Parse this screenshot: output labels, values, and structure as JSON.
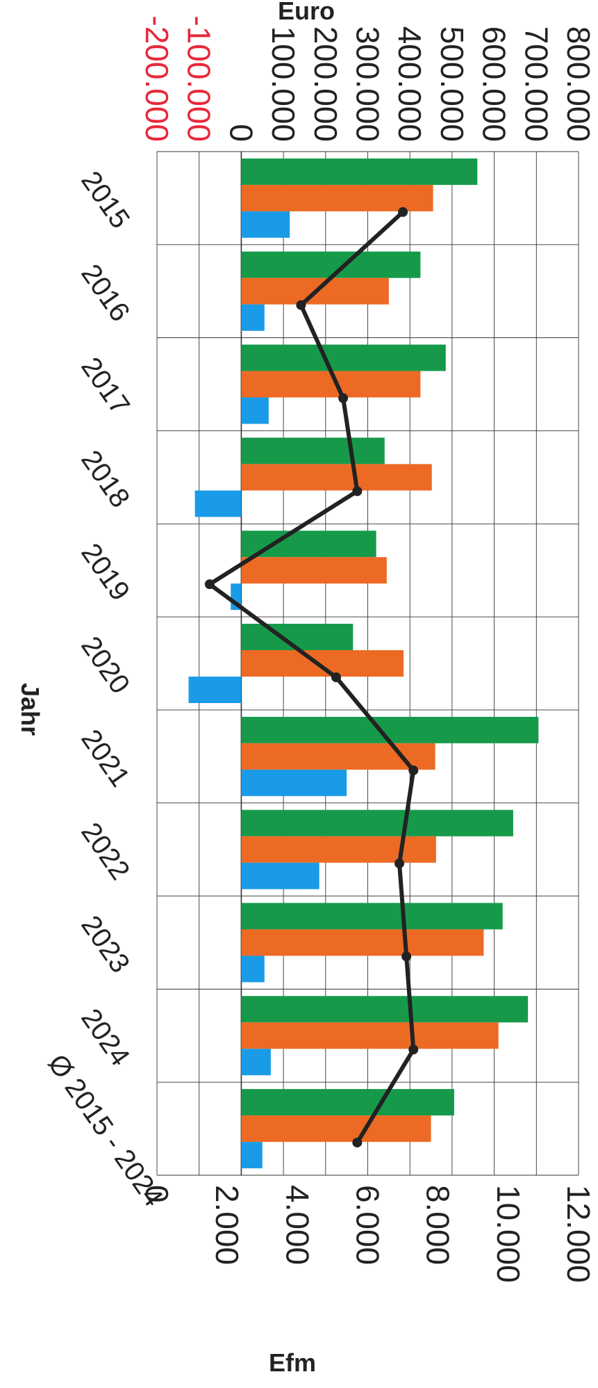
{
  "chart_data": {
    "type": "bar",
    "title": "",
    "categories": [
      "2015",
      "2016",
      "2017",
      "2018",
      "2019",
      "2020",
      "2021",
      "2022",
      "2023",
      "2024",
      "Ø 2015 - 2024"
    ],
    "xlabel": "Jahr",
    "ylabel": "Euro",
    "y2label": "Efm",
    "ylim": [
      -200000,
      800000
    ],
    "y2lim": [
      0,
      12000
    ],
    "yticks": [
      "800.000",
      "700.000",
      "600.000",
      "500.000",
      "400.000",
      "300.000",
      "200.000",
      "100.000",
      "0",
      "-100.000",
      "-200.000"
    ],
    "y2ticks": [
      "12.000",
      "10.000",
      "8.000",
      "6.000",
      "4.000",
      "2.000",
      "0"
    ],
    "grid": true,
    "series": [
      {
        "color": "#169a4a",
        "axis": "left",
        "values": [
          560000,
          425000,
          485000,
          340000,
          320000,
          265000,
          705000,
          645000,
          620000,
          680000,
          505000
        ]
      },
      {
        "color": "#ec6a24",
        "axis": "left",
        "values": [
          455000,
          350000,
          425000,
          452000,
          345000,
          385000,
          460000,
          462000,
          575000,
          610000,
          450000
        ]
      },
      {
        "color": "#1a9be8",
        "axis": "left",
        "values": [
          115000,
          55000,
          65000,
          -110000,
          -25000,
          -125000,
          250000,
          185000,
          55000,
          70000,
          50000
        ]
      },
      {
        "color": "#222222",
        "axis": "right",
        "type": "line",
        "values": [
          7000,
          4100,
          5300,
          5700,
          1500,
          5100,
          7300,
          6900,
          7100,
          7300,
          5700
        ]
      }
    ]
  }
}
